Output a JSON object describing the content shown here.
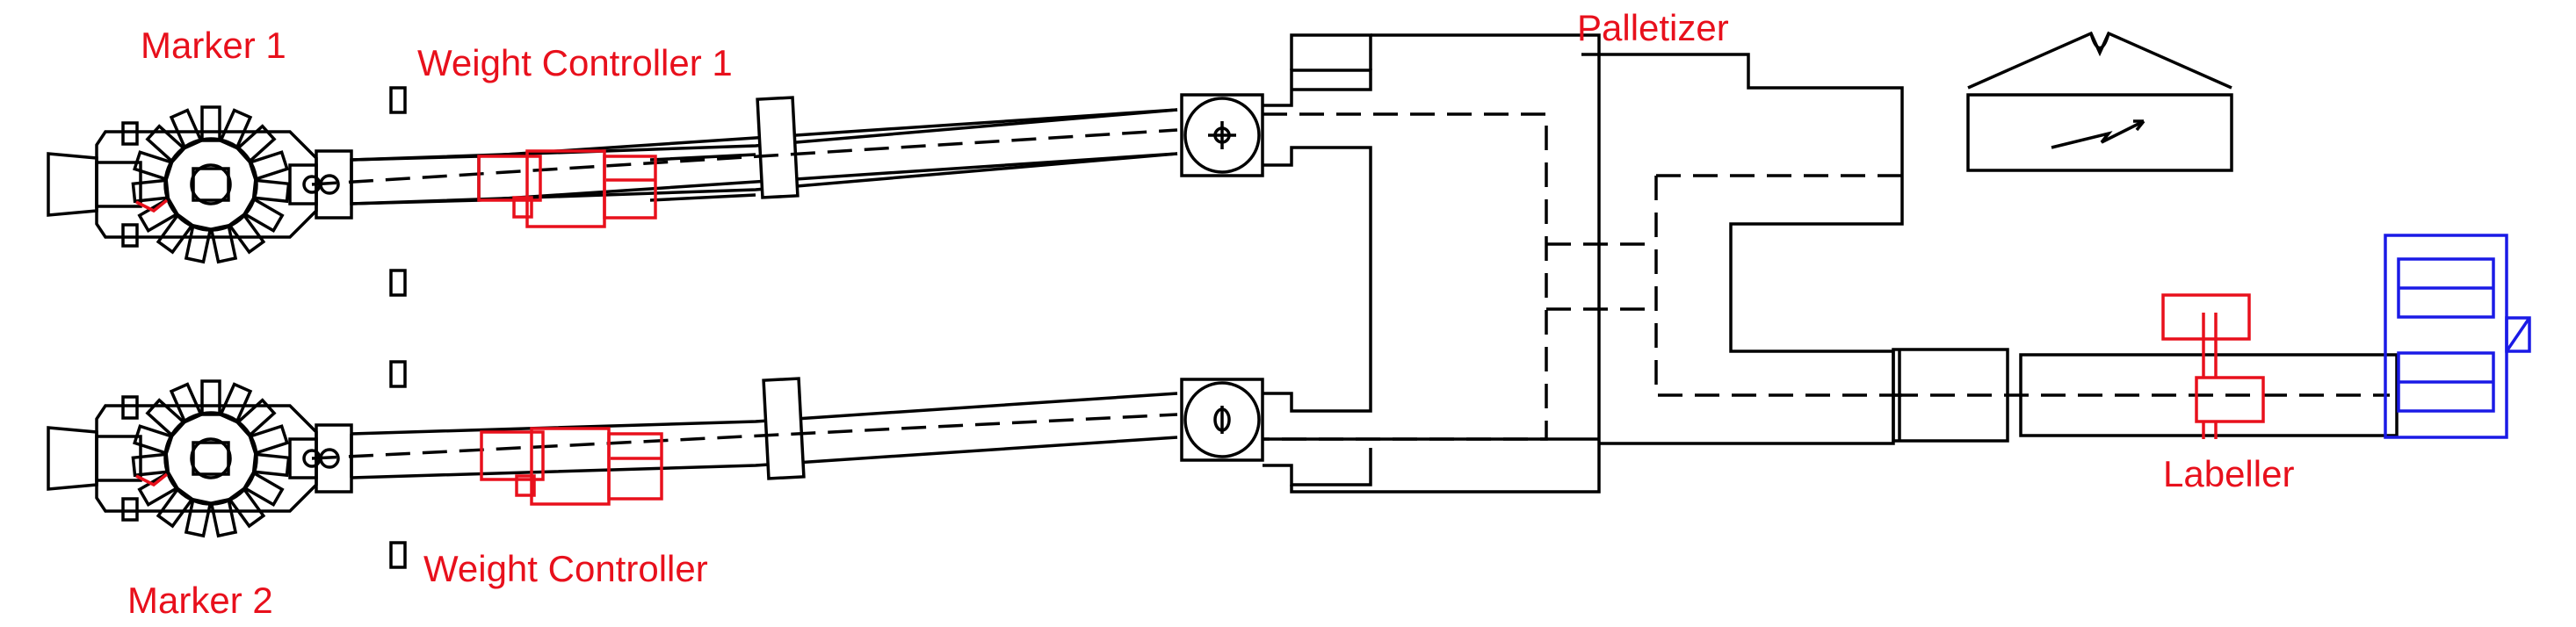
{
  "labels": {
    "marker_1": "Marker 1",
    "marker_2": "Marker 2",
    "weight_controller_1": "Weight Controller 1",
    "weight_controller_2": "Weight Controller",
    "palletizer": "Palletizer",
    "labeller": "Labeller"
  },
  "colors": {
    "label_text": "#e8101c",
    "highlight_red": "#e8101c",
    "highlight_blue": "#1a1ae6",
    "line": "#000000"
  },
  "icons": [
    "rotary-filler-icon",
    "direction-arrow-icon",
    "electrical-panel-icon"
  ]
}
